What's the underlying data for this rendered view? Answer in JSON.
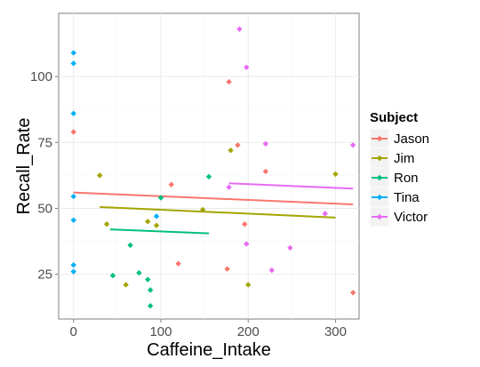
{
  "chart_data": {
    "type": "scatter",
    "xlabel": "Caffeine_Intake",
    "ylabel": "Recall_Rate",
    "xlim": [
      -17,
      327
    ],
    "ylim": [
      8,
      124
    ],
    "x_ticks": [
      0,
      100,
      200,
      300
    ],
    "y_ticks": [
      25,
      50,
      75,
      100
    ],
    "grid": true,
    "legend": {
      "title": "Subject",
      "position": "right"
    },
    "series": [
      {
        "name": "Jason",
        "color": "#F8766D",
        "points": [
          [
            0,
            79
          ],
          [
            112,
            59
          ],
          [
            120,
            29
          ],
          [
            176,
            27
          ],
          [
            178,
            98
          ],
          [
            188,
            74
          ],
          [
            196,
            44
          ],
          [
            220,
            64
          ],
          [
            320,
            18
          ]
        ],
        "trend": [
          [
            0,
            56
          ],
          [
            320,
            51.5
          ]
        ]
      },
      {
        "name": "Jim",
        "color": "#A3A500",
        "points": [
          [
            30,
            62.5
          ],
          [
            38,
            44
          ],
          [
            60,
            21
          ],
          [
            85,
            45
          ],
          [
            95,
            43.5
          ],
          [
            148,
            49.5
          ],
          [
            180,
            72
          ],
          [
            200,
            21
          ],
          [
            300,
            63
          ]
        ],
        "trend": [
          [
            30,
            50.5
          ],
          [
            300,
            46.5
          ]
        ]
      },
      {
        "name": "Ron",
        "color": "#00BF7D",
        "points": [
          [
            45,
            24.5
          ],
          [
            65,
            36
          ],
          [
            75,
            25.5
          ],
          [
            85,
            23
          ],
          [
            88,
            19
          ],
          [
            88,
            13
          ],
          [
            100,
            54
          ],
          [
            155,
            62
          ]
        ],
        "trend": [
          [
            42,
            42
          ],
          [
            155,
            40.5
          ]
        ]
      },
      {
        "name": "Tina",
        "color": "#00B0F6",
        "points": [
          [
            0,
            109
          ],
          [
            0,
            105
          ],
          [
            0,
            86
          ],
          [
            0,
            54.5
          ],
          [
            0,
            45.5
          ],
          [
            0,
            28.5
          ],
          [
            0,
            26
          ],
          [
            95,
            47
          ]
        ],
        "trend": []
      },
      {
        "name": "Victor",
        "color": "#E76BF3",
        "points": [
          [
            190,
            118
          ],
          [
            198,
            103.5
          ],
          [
            178,
            58
          ],
          [
            220,
            74.5
          ],
          [
            198,
            36.5
          ],
          [
            227,
            26.5
          ],
          [
            248,
            35
          ],
          [
            288,
            48
          ],
          [
            320,
            74
          ]
        ],
        "trend": [
          [
            178,
            59.5
          ],
          [
            320,
            57.5
          ]
        ]
      }
    ]
  }
}
